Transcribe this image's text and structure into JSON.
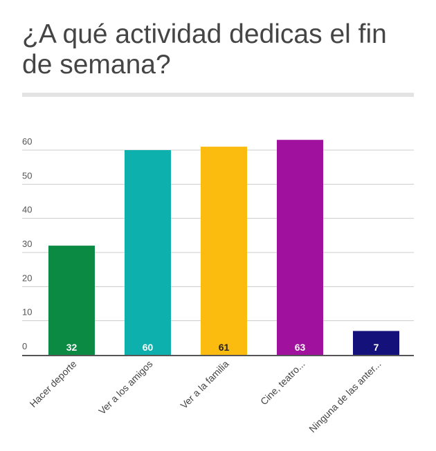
{
  "chart_data": {
    "type": "bar",
    "title": "¿A qué actividad dedicas el fin de semana?",
    "categories": [
      "Hacer deporte",
      "Ver a los amigos",
      "Ver a la familia",
      "Cine, teatro...",
      "Ninguna de las anter..."
    ],
    "values": [
      32,
      60,
      61,
      63,
      7
    ],
    "colors": [
      "#0b8a43",
      "#0eb0ae",
      "#fbbc0f",
      "#a0119e",
      "#14127a"
    ],
    "label_colors": [
      "#ffffff",
      "#ffffff",
      "#222222",
      "#ffffff",
      "#ffffff"
    ],
    "yticks": [
      0,
      10,
      20,
      30,
      40,
      50,
      60
    ],
    "ylim": [
      0,
      60
    ],
    "xlabel": "",
    "ylabel": "",
    "grid": true,
    "legend": "none"
  }
}
